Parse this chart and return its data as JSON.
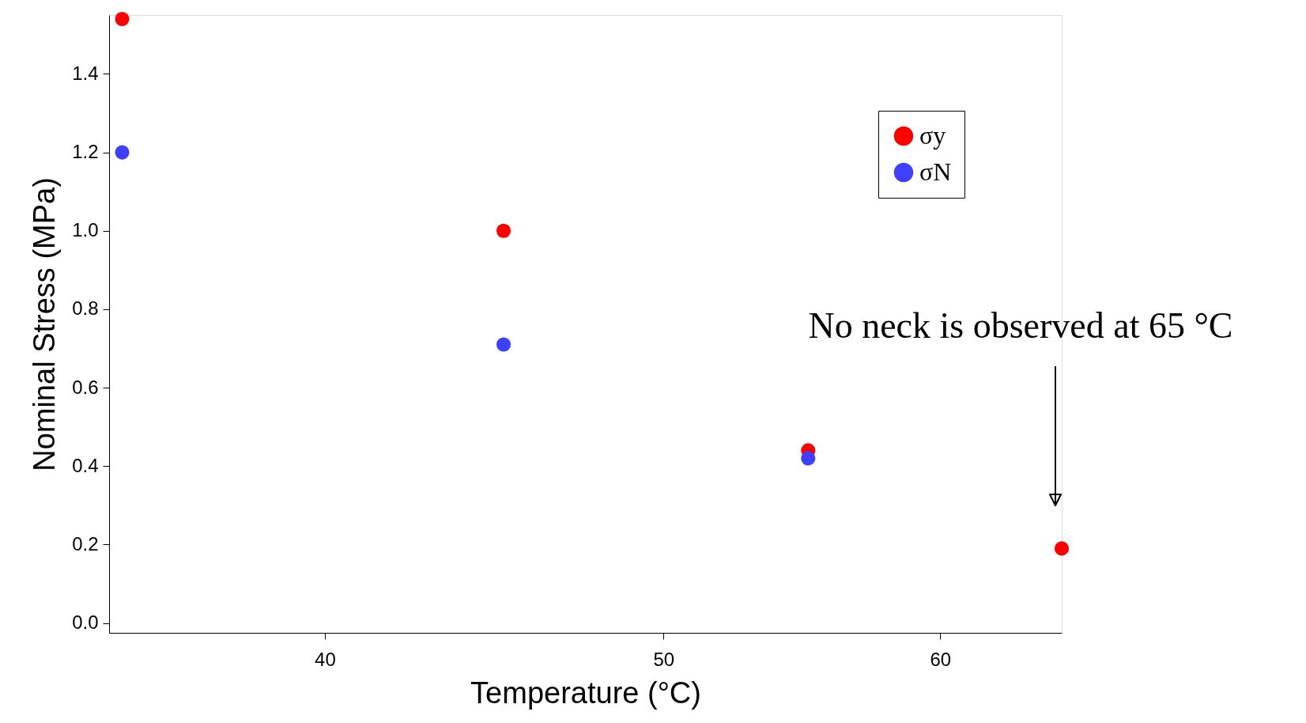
{
  "chart_data": {
    "type": "scatter",
    "xlabel": "Temperature (°C)",
    "ylabel": "Nominal Stress (MPa)",
    "log": "x",
    "x": [
      35,
      45,
      55,
      65
    ],
    "series": [
      {
        "name": "σy",
        "color": "#ff0000",
        "values": [
          1.54,
          1.0,
          0.44,
          0.19
        ]
      },
      {
        "name": "σN",
        "color": "#3f3fff",
        "values": [
          1.2,
          0.71,
          0.42,
          null
        ]
      }
    ],
    "xlim": [
      34.7,
      65
    ],
    "xticks": [
      40,
      50,
      60
    ],
    "ylim": [
      -0.025,
      1.55
    ],
    "yticks": [
      {
        "value": 0.0,
        "label": "0.0"
      },
      {
        "value": 0.2,
        "label": "0.2"
      },
      {
        "value": 0.4,
        "label": "0.4"
      },
      {
        "value": 0.6,
        "label": "0.6"
      },
      {
        "value": 0.8,
        "label": "0.8"
      },
      {
        "value": 1.0,
        "label": "1.0"
      },
      {
        "value": 1.2,
        "label": "1.2"
      },
      {
        "value": 1.4,
        "label": "1.4"
      }
    ],
    "marker": "circle",
    "grid": false,
    "legend": "top right",
    "annotations": [
      "No neck is observed at 65 °C"
    ]
  }
}
